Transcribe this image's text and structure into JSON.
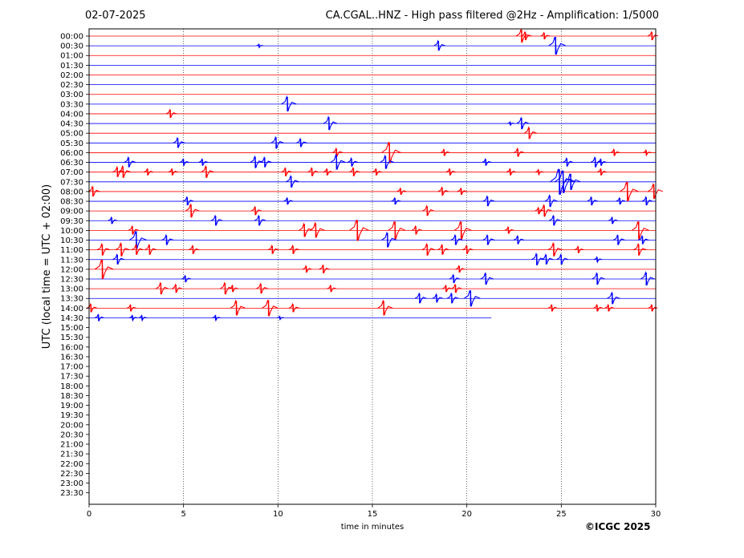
{
  "header": {
    "date": "02-07-2025",
    "title": "CA.CGAL..HNZ - High pass filtered @2Hz - Amplification: 1/5000"
  },
  "footer": {
    "copyright": "©ICGC 2025"
  },
  "colors": {
    "red_trace": "#ff0000",
    "blue_trace": "#0000ff",
    "axis": "#000000"
  },
  "chart_data": {
    "type": "helicorder",
    "xlabel": "time in minutes",
    "ylabel": "UTC (local time = UTC + 02:00)",
    "xlim": [
      0,
      30
    ],
    "xticks": [
      0,
      5,
      10,
      15,
      20,
      25,
      30
    ],
    "grid": "vertical dotted lines at 5-minute ticks",
    "row_labels": [
      "00:00",
      "00:30",
      "01:00",
      "01:30",
      "02:00",
      "02:30",
      "03:00",
      "03:30",
      "04:00",
      "04:30",
      "05:00",
      "05:30",
      "06:00",
      "06:30",
      "07:00",
      "07:30",
      "08:00",
      "08:30",
      "09:00",
      "09:30",
      "10:00",
      "10:30",
      "11:00",
      "11:30",
      "12:00",
      "12:30",
      "13:00",
      "13:30",
      "14:00",
      "14:30",
      "15:00",
      "15:30",
      "16:00",
      "16:30",
      "17:00",
      "17:30",
      "18:00",
      "18:30",
      "19:00",
      "19:30",
      "20:00",
      "20:30",
      "21:00",
      "21:30",
      "22:00",
      "22:30",
      "23:00",
      "23:30"
    ],
    "row_colors": [
      "red",
      "blue",
      "red",
      "blue"
    ],
    "last_row_index": 29,
    "last_row_end_minute": 21.3,
    "events": [
      {
        "row": 0,
        "t": 22.9,
        "a": 8
      },
      {
        "row": 0,
        "t": 23.1,
        "a": 5
      },
      {
        "row": 0,
        "t": 24.1,
        "a": 4
      },
      {
        "row": 0,
        "t": 29.8,
        "a": 5
      },
      {
        "row": 1,
        "t": 9.0,
        "a": 2
      },
      {
        "row": 1,
        "t": 18.5,
        "a": 6
      },
      {
        "row": 1,
        "t": 24.7,
        "a": 11
      },
      {
        "row": 7,
        "t": 10.5,
        "a": 9
      },
      {
        "row": 8,
        "t": 4.3,
        "a": 5
      },
      {
        "row": 9,
        "t": 12.7,
        "a": 8
      },
      {
        "row": 9,
        "t": 22.9,
        "a": 7
      },
      {
        "row": 9,
        "t": 22.3,
        "a": 2
      },
      {
        "row": 10,
        "t": 23.3,
        "a": 7
      },
      {
        "row": 11,
        "t": 4.7,
        "a": 6
      },
      {
        "row": 11,
        "t": 9.9,
        "a": 7
      },
      {
        "row": 11,
        "t": 11.2,
        "a": 5
      },
      {
        "row": 12,
        "t": 13.1,
        "a": 5
      },
      {
        "row": 12,
        "t": 15.9,
        "a": 13
      },
      {
        "row": 12,
        "t": 18.8,
        "a": 4
      },
      {
        "row": 12,
        "t": 22.7,
        "a": 5
      },
      {
        "row": 12,
        "t": 27.8,
        "a": 4
      },
      {
        "row": 12,
        "t": 29.5,
        "a": 3
      },
      {
        "row": 13,
        "t": 2.1,
        "a": 6
      },
      {
        "row": 13,
        "t": 5.0,
        "a": 4
      },
      {
        "row": 13,
        "t": 6.0,
        "a": 4
      },
      {
        "row": 13,
        "t": 8.8,
        "a": 7
      },
      {
        "row": 13,
        "t": 9.3,
        "a": 6
      },
      {
        "row": 13,
        "t": 13.1,
        "a": 9
      },
      {
        "row": 13,
        "t": 13.9,
        "a": 5
      },
      {
        "row": 13,
        "t": 15.7,
        "a": 8
      },
      {
        "row": 13,
        "t": 21.0,
        "a": 4
      },
      {
        "row": 13,
        "t": 25.3,
        "a": 5
      },
      {
        "row": 13,
        "t": 26.8,
        "a": 6
      },
      {
        "row": 13,
        "t": 27.1,
        "a": 4
      },
      {
        "row": 14,
        "t": 1.5,
        "a": 6
      },
      {
        "row": 14,
        "t": 1.8,
        "a": 7
      },
      {
        "row": 14,
        "t": 3.1,
        "a": 4
      },
      {
        "row": 14,
        "t": 4.4,
        "a": 4
      },
      {
        "row": 14,
        "t": 6.2,
        "a": 7
      },
      {
        "row": 14,
        "t": 10.4,
        "a": 5
      },
      {
        "row": 14,
        "t": 11.8,
        "a": 5
      },
      {
        "row": 14,
        "t": 12.6,
        "a": 4
      },
      {
        "row": 14,
        "t": 14.0,
        "a": 5
      },
      {
        "row": 14,
        "t": 15.2,
        "a": 4
      },
      {
        "row": 14,
        "t": 19.1,
        "a": 4
      },
      {
        "row": 14,
        "t": 22.3,
        "a": 4
      },
      {
        "row": 14,
        "t": 23.8,
        "a": 3
      },
      {
        "row": 14,
        "t": 27.1,
        "a": 4
      },
      {
        "row": 15,
        "t": 10.7,
        "a": 7
      },
      {
        "row": 15,
        "t": 24.9,
        "a": 16
      },
      {
        "row": 15,
        "t": 25.1,
        "a": 14
      },
      {
        "row": 15,
        "t": 25.5,
        "a": 10
      },
      {
        "row": 16,
        "t": 0.2,
        "a": 6
      },
      {
        "row": 16,
        "t": 16.5,
        "a": 4
      },
      {
        "row": 16,
        "t": 18.7,
        "a": 5
      },
      {
        "row": 16,
        "t": 19.7,
        "a": 4
      },
      {
        "row": 16,
        "t": 28.5,
        "a": 12
      },
      {
        "row": 16,
        "t": 29.9,
        "a": 9
      },
      {
        "row": 17,
        "t": 5.2,
        "a": 5
      },
      {
        "row": 17,
        "t": 10.5,
        "a": 4
      },
      {
        "row": 17,
        "t": 16.2,
        "a": 4
      },
      {
        "row": 17,
        "t": 21.1,
        "a": 6
      },
      {
        "row": 17,
        "t": 24.4,
        "a": 7
      },
      {
        "row": 17,
        "t": 26.6,
        "a": 5
      },
      {
        "row": 17,
        "t": 28.1,
        "a": 4
      },
      {
        "row": 17,
        "t": 29.5,
        "a": 5
      },
      {
        "row": 18,
        "t": 5.4,
        "a": 8
      },
      {
        "row": 18,
        "t": 8.8,
        "a": 5
      },
      {
        "row": 18,
        "t": 17.9,
        "a": 6
      },
      {
        "row": 18,
        "t": 23.8,
        "a": 4
      },
      {
        "row": 18,
        "t": 24.1,
        "a": 7
      },
      {
        "row": 19,
        "t": 1.2,
        "a": 4
      },
      {
        "row": 19,
        "t": 6.7,
        "a": 6
      },
      {
        "row": 19,
        "t": 9.0,
        "a": 6
      },
      {
        "row": 19,
        "t": 24.6,
        "a": 6
      },
      {
        "row": 19,
        "t": 27.7,
        "a": 4
      },
      {
        "row": 20,
        "t": 2.3,
        "a": 5
      },
      {
        "row": 20,
        "t": 11.4,
        "a": 8
      },
      {
        "row": 20,
        "t": 12.0,
        "a": 9
      },
      {
        "row": 20,
        "t": 14.2,
        "a": 13
      },
      {
        "row": 20,
        "t": 16.2,
        "a": 11
      },
      {
        "row": 20,
        "t": 17.3,
        "a": 5
      },
      {
        "row": 20,
        "t": 19.7,
        "a": 11
      },
      {
        "row": 20,
        "t": 22.2,
        "a": 4
      },
      {
        "row": 20,
        "t": 29.1,
        "a": 11
      },
      {
        "row": 21,
        "t": 2.5,
        "a": 11
      },
      {
        "row": 21,
        "t": 4.1,
        "a": 6
      },
      {
        "row": 21,
        "t": 15.8,
        "a": 9
      },
      {
        "row": 21,
        "t": 19.4,
        "a": 6
      },
      {
        "row": 21,
        "t": 21.1,
        "a": 6
      },
      {
        "row": 21,
        "t": 22.7,
        "a": 5
      },
      {
        "row": 21,
        "t": 28.0,
        "a": 6
      },
      {
        "row": 21,
        "t": 29.3,
        "a": 5
      },
      {
        "row": 22,
        "t": 0.7,
        "a": 7
      },
      {
        "row": 22,
        "t": 1.7,
        "a": 8
      },
      {
        "row": 22,
        "t": 2.5,
        "a": 6
      },
      {
        "row": 22,
        "t": 3.2,
        "a": 6
      },
      {
        "row": 22,
        "t": 5.5,
        "a": 5
      },
      {
        "row": 22,
        "t": 9.7,
        "a": 5
      },
      {
        "row": 22,
        "t": 10.8,
        "a": 5
      },
      {
        "row": 22,
        "t": 17.9,
        "a": 7
      },
      {
        "row": 22,
        "t": 18.7,
        "a": 6
      },
      {
        "row": 22,
        "t": 20.0,
        "a": 5
      },
      {
        "row": 22,
        "t": 24.6,
        "a": 8
      },
      {
        "row": 22,
        "t": 25.9,
        "a": 4
      },
      {
        "row": 22,
        "t": 29.1,
        "a": 7
      },
      {
        "row": 23,
        "t": 1.5,
        "a": 6
      },
      {
        "row": 23,
        "t": 23.7,
        "a": 7
      },
      {
        "row": 23,
        "t": 24.2,
        "a": 6
      },
      {
        "row": 23,
        "t": 25.0,
        "a": 6
      },
      {
        "row": 23,
        "t": 26.9,
        "a": 3
      },
      {
        "row": 24,
        "t": 0.7,
        "a": 12
      },
      {
        "row": 24,
        "t": 11.5,
        "a": 4
      },
      {
        "row": 24,
        "t": 12.4,
        "a": 5
      },
      {
        "row": 24,
        "t": 19.6,
        "a": 4
      },
      {
        "row": 25,
        "t": 5.1,
        "a": 4
      },
      {
        "row": 25,
        "t": 19.3,
        "a": 5
      },
      {
        "row": 25,
        "t": 21.0,
        "a": 7
      },
      {
        "row": 25,
        "t": 26.9,
        "a": 7
      },
      {
        "row": 25,
        "t": 29.5,
        "a": 8
      },
      {
        "row": 26,
        "t": 3.8,
        "a": 7
      },
      {
        "row": 26,
        "t": 4.6,
        "a": 5
      },
      {
        "row": 26,
        "t": 7.2,
        "a": 7
      },
      {
        "row": 26,
        "t": 7.6,
        "a": 4
      },
      {
        "row": 26,
        "t": 9.1,
        "a": 6
      },
      {
        "row": 26,
        "t": 12.8,
        "a": 4
      },
      {
        "row": 26,
        "t": 18.9,
        "a": 4
      },
      {
        "row": 26,
        "t": 19.4,
        "a": 5
      },
      {
        "row": 27,
        "t": 17.5,
        "a": 6
      },
      {
        "row": 27,
        "t": 18.4,
        "a": 5
      },
      {
        "row": 27,
        "t": 19.2,
        "a": 6
      },
      {
        "row": 27,
        "t": 20.2,
        "a": 10
      },
      {
        "row": 27,
        "t": 27.7,
        "a": 7
      },
      {
        "row": 28,
        "t": 0.1,
        "a": 5
      },
      {
        "row": 28,
        "t": 2.2,
        "a": 4
      },
      {
        "row": 28,
        "t": 7.8,
        "a": 9
      },
      {
        "row": 28,
        "t": 9.5,
        "a": 10
      },
      {
        "row": 28,
        "t": 10.8,
        "a": 5
      },
      {
        "row": 28,
        "t": 15.6,
        "a": 9
      },
      {
        "row": 28,
        "t": 24.5,
        "a": 4
      },
      {
        "row": 28,
        "t": 26.9,
        "a": 4
      },
      {
        "row": 28,
        "t": 27.5,
        "a": 4
      },
      {
        "row": 28,
        "t": 29.8,
        "a": 4
      },
      {
        "row": 29,
        "t": 0.5,
        "a": 4
      },
      {
        "row": 29,
        "t": 2.3,
        "a": 3
      },
      {
        "row": 29,
        "t": 2.8,
        "a": 3
      },
      {
        "row": 29,
        "t": 6.7,
        "a": 3
      },
      {
        "row": 29,
        "t": 10.1,
        "a": 2
      }
    ]
  }
}
